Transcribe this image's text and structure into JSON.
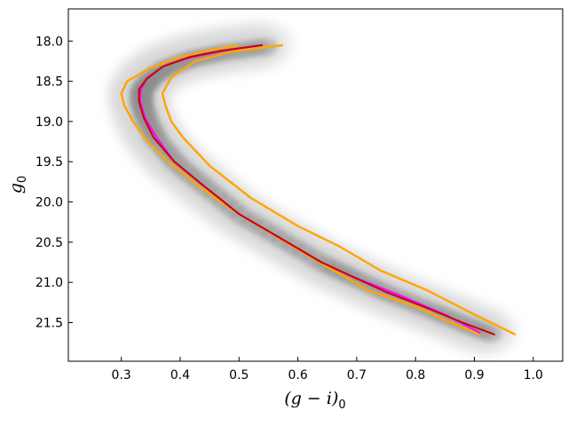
{
  "chart_data": {
    "type": "line",
    "title": "",
    "xlabel": {
      "main": "(g − i)",
      "sub": "0"
    },
    "ylabel": {
      "main": "g",
      "sub": "0"
    },
    "xlim": [
      0.21,
      1.05
    ],
    "ylim": [
      21.98,
      17.6
    ],
    "y_inverted": true,
    "grid": false,
    "legend": "none",
    "x_ticks": [
      0.3,
      0.4,
      0.5,
      0.6,
      0.7,
      0.8,
      0.9,
      1.0
    ],
    "x_tick_labels": [
      "0.3",
      "0.4",
      "0.5",
      "0.6",
      "0.7",
      "0.8",
      "0.9",
      "1.0"
    ],
    "y_ticks": [
      18.0,
      18.5,
      19.0,
      19.5,
      20.0,
      20.5,
      21.0,
      21.5
    ],
    "y_tick_labels": [
      "18.0",
      "18.5",
      "19.0",
      "19.5",
      "20.0",
      "20.5",
      "21.0",
      "21.5"
    ],
    "background": "density of stars in greyscale (darkest along the sequence)",
    "series": [
      {
        "color": "#ffa500",
        "x": [
          0.5,
          0.44,
          0.39,
          0.345,
          0.31,
          0.3,
          0.305,
          0.32,
          0.345,
          0.38,
          0.43,
          0.5,
          0.58,
          0.66,
          0.72,
          0.8,
          0.86,
          0.91
        ],
        "y": [
          18.05,
          18.13,
          18.22,
          18.35,
          18.5,
          18.65,
          18.8,
          19.0,
          19.25,
          19.5,
          19.8,
          20.15,
          20.5,
          20.85,
          21.1,
          21.3,
          21.5,
          21.65
        ]
      },
      {
        "color": "#ffa500",
        "x": [
          0.575,
          0.49,
          0.425,
          0.385,
          0.37,
          0.375,
          0.385,
          0.405,
          0.45,
          0.52,
          0.6,
          0.67,
          0.74,
          0.82,
          0.9,
          0.97
        ],
        "y": [
          18.05,
          18.13,
          18.25,
          18.45,
          18.65,
          18.8,
          19.0,
          19.2,
          19.55,
          19.95,
          20.3,
          20.55,
          20.85,
          21.1,
          21.4,
          21.65
        ]
      },
      {
        "color": "#ff00ff",
        "x": [
          0.54,
          0.475,
          0.42,
          0.375,
          0.345,
          0.333,
          0.332,
          0.34,
          0.36,
          0.39,
          0.44,
          0.5,
          0.57,
          0.64,
          0.7,
          0.77,
          0.85,
          0.91
        ],
        "y": [
          18.05,
          18.12,
          18.2,
          18.3,
          18.45,
          18.6,
          18.75,
          18.95,
          19.2,
          19.5,
          19.8,
          20.15,
          20.45,
          20.75,
          20.95,
          21.15,
          21.4,
          21.63
        ]
      },
      {
        "color": "#cc0000",
        "x": [
          0.54,
          0.47,
          0.415,
          0.37,
          0.343,
          0.33,
          0.33,
          0.338,
          0.355,
          0.39,
          0.44,
          0.5,
          0.57,
          0.64,
          0.69,
          0.75,
          0.82,
          0.88,
          0.935
        ],
        "y": [
          18.05,
          18.12,
          18.2,
          18.32,
          18.47,
          18.6,
          18.75,
          18.95,
          19.2,
          19.5,
          19.8,
          20.15,
          20.45,
          20.75,
          20.92,
          21.12,
          21.32,
          21.5,
          21.65
        ]
      }
    ]
  }
}
